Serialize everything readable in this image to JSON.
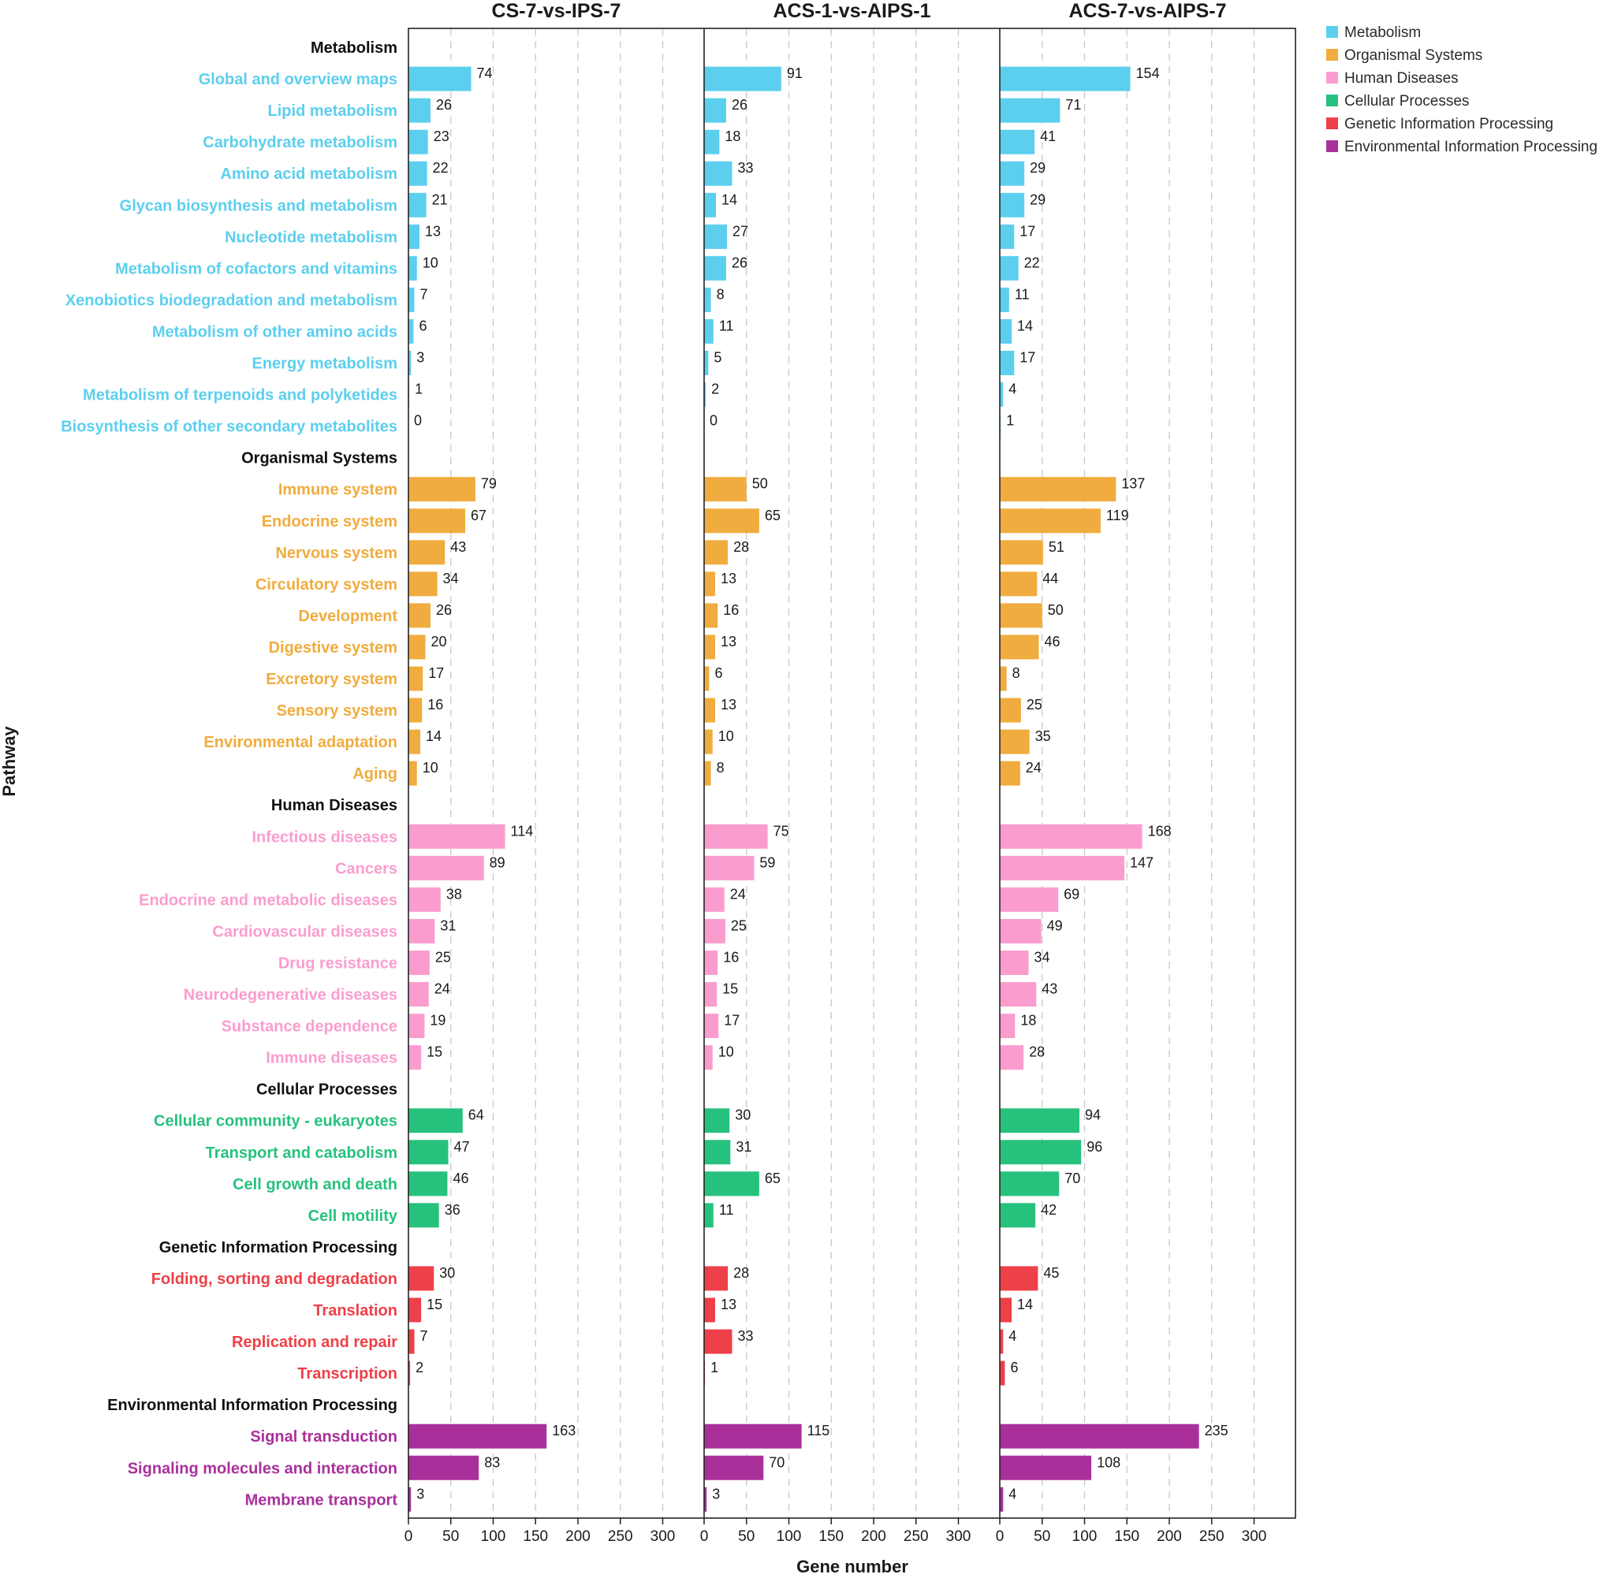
{
  "chart_data": {
    "type": "bar",
    "orientation": "horizontal",
    "xlabel": "Gene number",
    "ylabel": "Pathway",
    "xlim": [
      0,
      350
    ],
    "xticks": [
      0,
      50,
      100,
      150,
      200,
      250,
      300
    ],
    "grid": true,
    "legend_position": "top-right",
    "panels": [
      "CS-7-vs-IPS-7",
      "ACS-1-vs-AIPS-1",
      "ACS-7-vs-AIPS-7"
    ],
    "groups": [
      {
        "name": "Metabolism",
        "color": "#5ccfee",
        "categories": [
          {
            "label": "Global and overview maps",
            "values": [
              74,
              91,
              154
            ]
          },
          {
            "label": "Lipid metabolism",
            "values": [
              26,
              26,
              71
            ]
          },
          {
            "label": "Carbohydrate metabolism",
            "values": [
              23,
              18,
              41
            ]
          },
          {
            "label": "Amino acid metabolism",
            "values": [
              22,
              33,
              29
            ]
          },
          {
            "label": "Glycan biosynthesis and metabolism",
            "values": [
              21,
              14,
              29
            ]
          },
          {
            "label": "Nucleotide metabolism",
            "values": [
              13,
              27,
              17
            ]
          },
          {
            "label": "Metabolism of cofactors and vitamins",
            "values": [
              10,
              26,
              22
            ]
          },
          {
            "label": "Xenobiotics biodegradation and metabolism",
            "values": [
              7,
              8,
              11
            ]
          },
          {
            "label": "Metabolism of other amino acids",
            "values": [
              6,
              11,
              14
            ]
          },
          {
            "label": "Energy metabolism",
            "values": [
              3,
              5,
              17
            ]
          },
          {
            "label": "Metabolism of terpenoids and polyketides",
            "values": [
              1,
              2,
              4
            ]
          },
          {
            "label": "Biosynthesis of other secondary metabolites",
            "values": [
              0,
              0,
              1
            ]
          }
        ]
      },
      {
        "name": "Organismal Systems",
        "color": "#f0ac3e",
        "categories": [
          {
            "label": "Immune system",
            "values": [
              79,
              50,
              137
            ]
          },
          {
            "label": "Endocrine system",
            "values": [
              67,
              65,
              119
            ]
          },
          {
            "label": "Nervous system",
            "values": [
              43,
              28,
              51
            ]
          },
          {
            "label": "Circulatory system",
            "values": [
              34,
              13,
              44
            ]
          },
          {
            "label": "Development",
            "values": [
              26,
              16,
              50
            ]
          },
          {
            "label": "Digestive system",
            "values": [
              20,
              13,
              46
            ]
          },
          {
            "label": "Excretory system",
            "values": [
              17,
              6,
              8
            ]
          },
          {
            "label": "Sensory system",
            "values": [
              16,
              13,
              25
            ]
          },
          {
            "label": "Environmental adaptation",
            "values": [
              14,
              10,
              35
            ]
          },
          {
            "label": "Aging",
            "values": [
              10,
              8,
              24
            ]
          }
        ]
      },
      {
        "name": "Human Diseases",
        "color": "#fa9dce",
        "categories": [
          {
            "label": "Infectious diseases",
            "values": [
              114,
              75,
              168
            ]
          },
          {
            "label": "Cancers",
            "values": [
              89,
              59,
              147
            ]
          },
          {
            "label": "Endocrine and metabolic diseases",
            "values": [
              38,
              24,
              69
            ]
          },
          {
            "label": "Cardiovascular diseases",
            "values": [
              31,
              25,
              49
            ]
          },
          {
            "label": "Drug resistance",
            "values": [
              25,
              16,
              34
            ]
          },
          {
            "label": "Neurodegenerative diseases",
            "values": [
              24,
              15,
              43
            ]
          },
          {
            "label": "Substance dependence",
            "values": [
              19,
              17,
              18
            ]
          },
          {
            "label": "Immune diseases",
            "values": [
              15,
              10,
              28
            ]
          }
        ]
      },
      {
        "name": "Cellular Processes",
        "color": "#27c17e",
        "categories": [
          {
            "label": "Cellular community - eukaryotes",
            "values": [
              64,
              30,
              94
            ]
          },
          {
            "label": "Transport and catabolism",
            "values": [
              47,
              31,
              96
            ]
          },
          {
            "label": "Cell growth and death",
            "values": [
              46,
              65,
              70
            ]
          },
          {
            "label": "Cell motility",
            "values": [
              36,
              11,
              42
            ]
          }
        ]
      },
      {
        "name": "Genetic Information Processing",
        "color": "#ee4048",
        "categories": [
          {
            "label": "Folding, sorting and degradation",
            "values": [
              30,
              28,
              45
            ]
          },
          {
            "label": "Translation",
            "values": [
              15,
              13,
              14
            ]
          },
          {
            "label": "Replication and repair",
            "values": [
              7,
              33,
              4
            ]
          },
          {
            "label": "Transcription",
            "values": [
              2,
              1,
              6
            ]
          }
        ]
      },
      {
        "name": "Environmental Information Processing",
        "color": "#a9309a",
        "categories": [
          {
            "label": "Signal transduction",
            "values": [
              163,
              115,
              235
            ]
          },
          {
            "label": "Signaling molecules and interaction",
            "values": [
              83,
              70,
              108
            ]
          },
          {
            "label": "Membrane transport",
            "values": [
              3,
              3,
              4
            ]
          }
        ]
      }
    ]
  }
}
